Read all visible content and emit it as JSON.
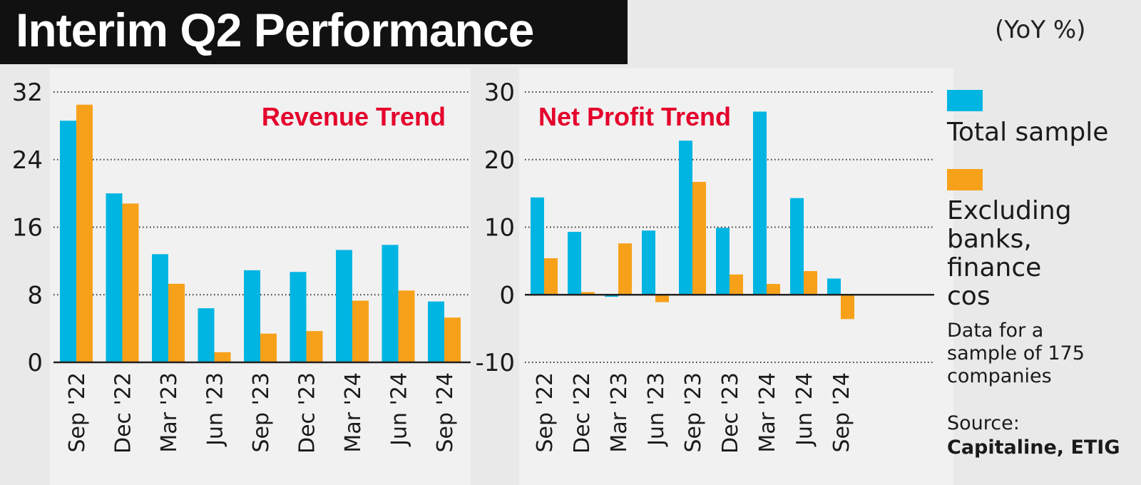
{
  "title": "Interim Q2 Performance",
  "unit": "(YoY %)",
  "colors": {
    "total": "#00b5e2",
    "excluding": "#f7a11a",
    "chart_title": "#e4002b"
  },
  "legend": {
    "total": "Total sample",
    "excluding": "Excluding banks, finance cos"
  },
  "note": "Data for a sample of 175 companies",
  "source_label": "Source:",
  "source": "Capitaline, ETIG",
  "chart_data": [
    {
      "type": "bar",
      "title": "Revenue Trend",
      "categories": [
        "Sep '22",
        "Dec '22",
        "Mar '23",
        "Jun '23",
        "Sep '23",
        "Dec '23",
        "Mar '24",
        "Jun '24",
        "Sep '24"
      ],
      "ylim": [
        0,
        32
      ],
      "yticks": [
        0,
        8,
        16,
        24,
        32
      ],
      "grid": true,
      "series": [
        {
          "name": "Total sample",
          "values": [
            28.6,
            20.0,
            12.8,
            6.4,
            10.9,
            10.7,
            13.3,
            13.9,
            7.2
          ]
        },
        {
          "name": "Excluding banks, finance cos",
          "values": [
            30.5,
            18.8,
            9.3,
            1.2,
            3.4,
            3.7,
            7.3,
            8.5,
            5.3
          ]
        }
      ]
    },
    {
      "type": "bar",
      "title": "Net Profit Trend",
      "categories": [
        "Sep '22",
        "Dec '22",
        "Mar '23",
        "Jun '23",
        "Sep '23",
        "Dec '23",
        "Mar '24",
        "Jun '24",
        "Sep '24"
      ],
      "ylim": [
        -10,
        30
      ],
      "yticks": [
        -10,
        0,
        10,
        20,
        30
      ],
      "grid": true,
      "series": [
        {
          "name": "Total sample",
          "values": [
            14.4,
            9.3,
            -0.3,
            9.5,
            22.8,
            9.9,
            27.1,
            14.3,
            2.4
          ]
        },
        {
          "name": "Excluding banks, finance cos",
          "values": [
            5.4,
            0.4,
            7.6,
            -1.1,
            16.7,
            3.0,
            1.6,
            3.5,
            -3.6
          ]
        }
      ]
    }
  ]
}
